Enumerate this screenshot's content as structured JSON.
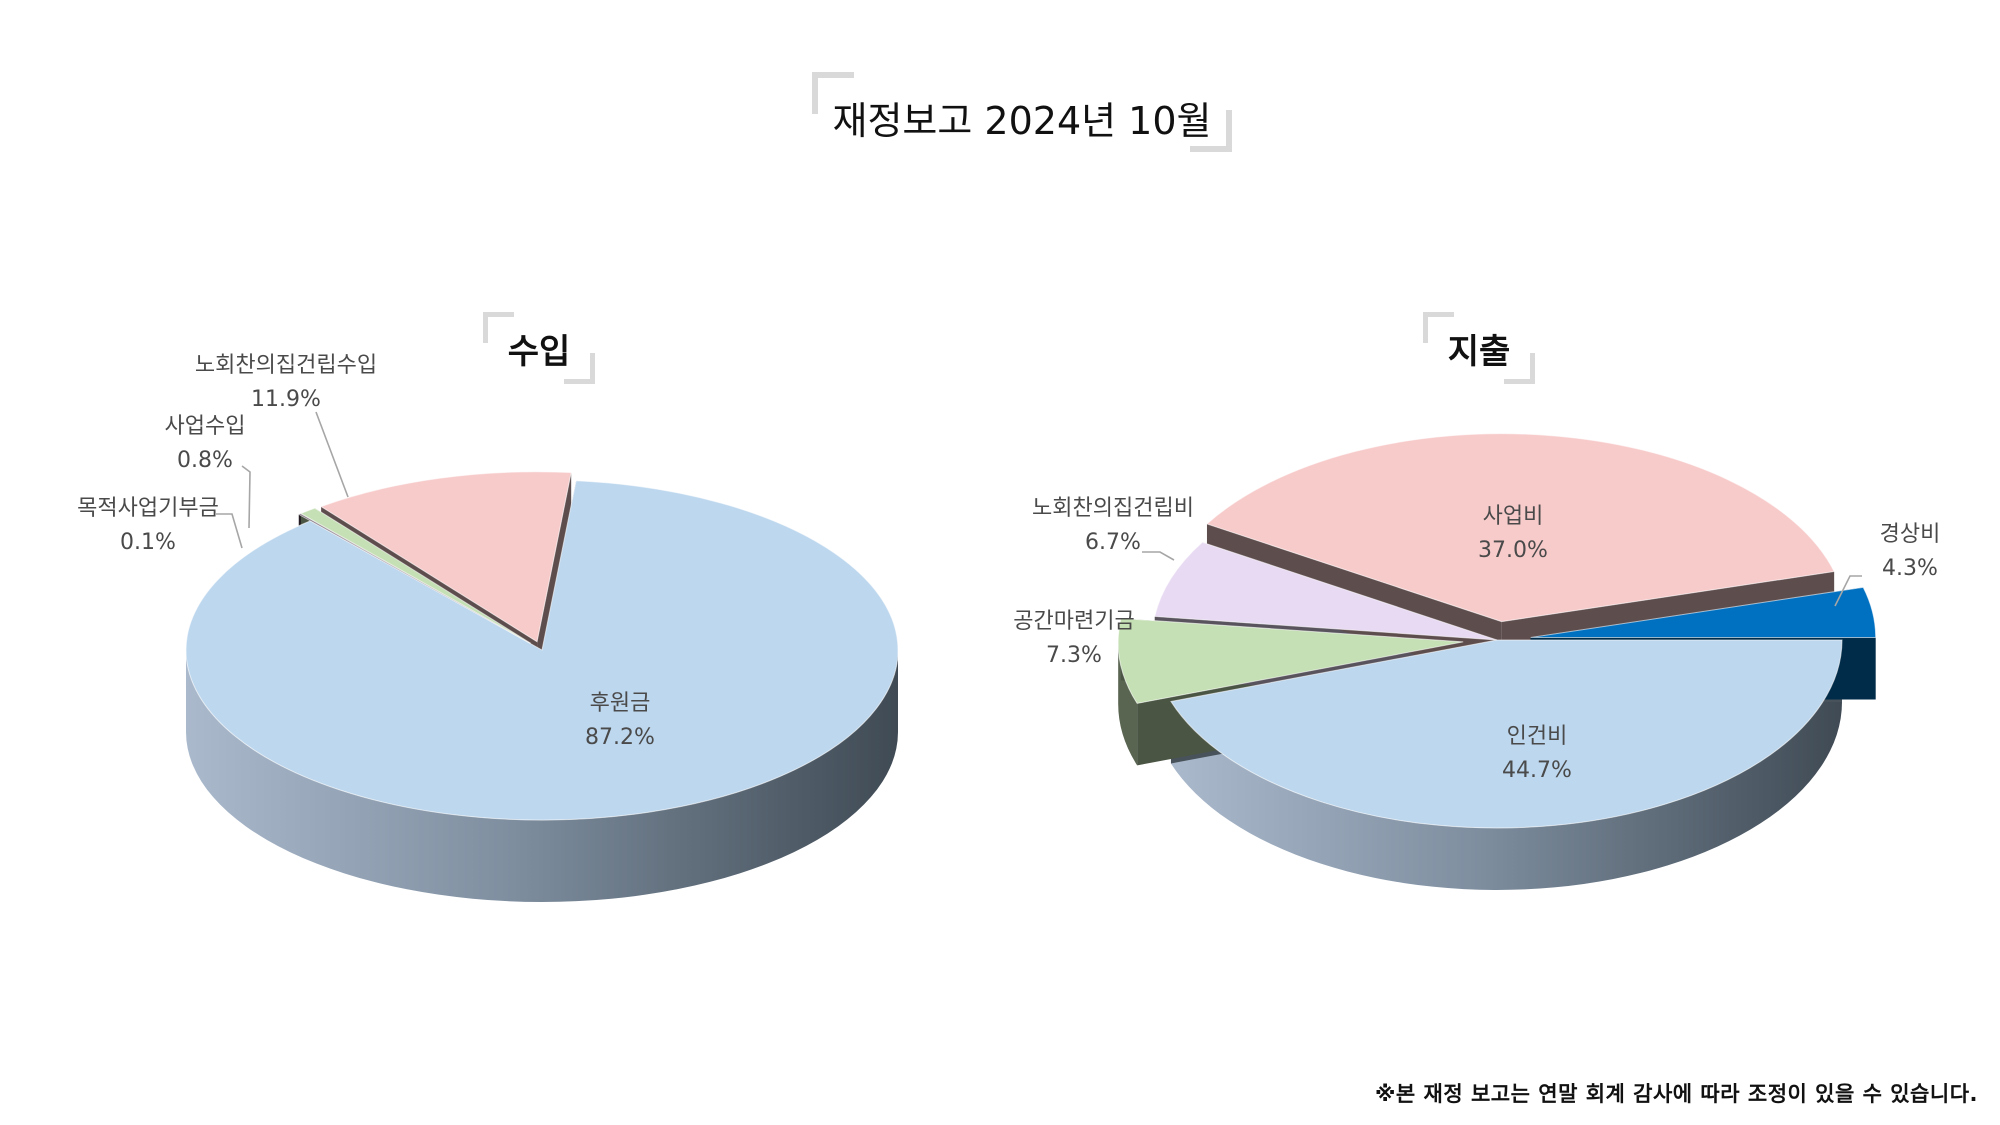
{
  "title": "재정보고 2024년 10월",
  "footnote": "※본 재정 보고는 연말 회계 감사에 따라 조정이 있을 수 있습니다.",
  "chart_data": [
    {
      "type": "pie",
      "title": "수입",
      "categories": [
        "후원금",
        "목적사업기부금",
        "사업수입",
        "노회찬의집건립수입"
      ],
      "values": [
        87.2,
        0.1,
        0.8,
        11.9
      ],
      "value_labels": [
        "87.2%",
        "0.1%",
        "0.8%",
        "11.9%"
      ],
      "colors": [
        "#bdd7ee",
        "#5a4a5a",
        "#c5e0b4",
        "#f8cbcb"
      ],
      "exploded": [
        "목적사업기부금",
        "사업수입",
        "노회찬의집건립수입"
      ],
      "style": "3d"
    },
    {
      "type": "pie",
      "title": "지출",
      "categories": [
        "인건비",
        "공간마련기금",
        "노회찬의집건립비",
        "사업비",
        "경상비"
      ],
      "values": [
        44.7,
        7.3,
        6.7,
        37.0,
        4.3
      ],
      "value_labels": [
        "44.7%",
        "7.3%",
        "6.7%",
        "37.0%",
        "4.3%"
      ],
      "colors": [
        "#bdd7ee",
        "#c5e0b4",
        "#e8daf2",
        "#f8cbcb",
        "#0070c0"
      ],
      "exploded": [
        "공간마련기금",
        "사업비",
        "경상비"
      ],
      "style": "3d"
    }
  ]
}
